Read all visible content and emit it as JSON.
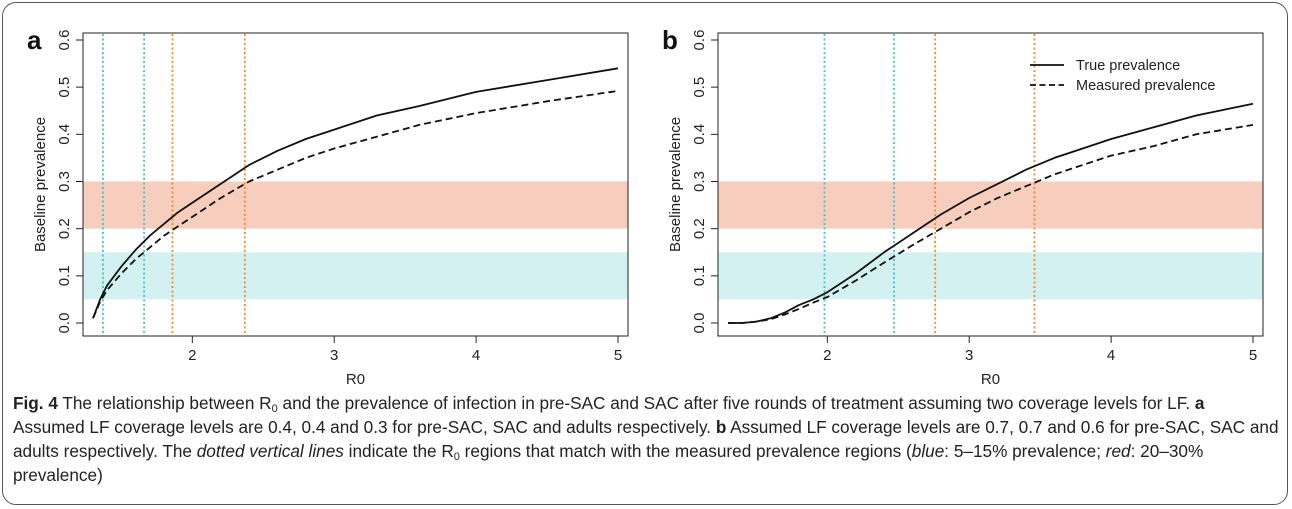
{
  "figure": {
    "caption": {
      "label": "Fig. 4",
      "line1_a": "The relationship between R",
      "line1_sub": "0",
      "line1_b": " and the prevalence of infection in pre-SAC and SAC after five rounds of treatment assuming two coverage levels for LF. ",
      "panel_a_label": "a",
      "panel_a_text": " Assumed LF coverage levels are 0.4, 0.4 and 0.3 for pre-SAC, SAC and adults respectively. ",
      "panel_b_label": "b",
      "panel_b_text": " Assumed LF coverage levels are 0.7, 0.7 and 0.6 for pre-SAC, SAC and adults respectively. The ",
      "dotted_phrase": "dotted vertical lines",
      "text_c": " indicate the R",
      "text_c_sub": "0",
      "text_d": " regions that match with the measured prevalence regions (",
      "blue_word": "blue",
      "text_e": ": 5–15% prevalence; ",
      "red_word": "red",
      "text_f": ": 20–30% prevalence)"
    }
  },
  "colors": {
    "red_band": "#f7cdbd",
    "blue_band": "#d4f1f1",
    "cyan_line": "#3ec6cf",
    "orange_line": "#f08c2a",
    "curve": "#111111"
  },
  "chart_data": [
    {
      "type": "line",
      "panel_label": "a",
      "xlabel": "R0",
      "ylabel": "Baseline prevalence",
      "xlim": [
        1.3,
        5.0
      ],
      "ylim": [
        0.0,
        0.6
      ],
      "x_ticks": [
        "2",
        "3",
        "4",
        "5"
      ],
      "y_ticks": [
        "0.0",
        "0.1",
        "0.2",
        "0.3",
        "0.4",
        "0.5",
        "0.6"
      ],
      "bands": [
        {
          "name": "blue",
          "range": [
            0.05,
            0.15
          ]
        },
        {
          "name": "red",
          "range": [
            0.2,
            0.3
          ]
        }
      ],
      "vlines": [
        {
          "color": "cyan",
          "x": 1.37
        },
        {
          "color": "cyan",
          "x": 1.66
        },
        {
          "color": "orange",
          "x": 1.86
        },
        {
          "color": "orange",
          "x": 2.37
        }
      ],
      "series": [
        {
          "style": "solid",
          "x": [
            1.3,
            1.35,
            1.4,
            1.5,
            1.6,
            1.7,
            1.8,
            1.9,
            2.0,
            2.2,
            2.4,
            2.6,
            2.8,
            3.0,
            3.3,
            3.6,
            4.0,
            4.5,
            5.0
          ],
          "y": [
            0.01,
            0.05,
            0.08,
            0.12,
            0.155,
            0.185,
            0.21,
            0.235,
            0.255,
            0.295,
            0.335,
            0.365,
            0.39,
            0.41,
            0.44,
            0.46,
            0.49,
            0.515,
            0.54
          ]
        },
        {
          "style": "dashed",
          "x": [
            1.3,
            1.35,
            1.4,
            1.5,
            1.6,
            1.7,
            1.8,
            1.9,
            2.0,
            2.2,
            2.4,
            2.6,
            2.8,
            3.0,
            3.3,
            3.6,
            4.0,
            4.5,
            5.0
          ],
          "y": [
            0.01,
            0.045,
            0.07,
            0.105,
            0.135,
            0.16,
            0.185,
            0.205,
            0.225,
            0.265,
            0.3,
            0.325,
            0.35,
            0.37,
            0.395,
            0.42,
            0.445,
            0.47,
            0.492
          ]
        }
      ]
    },
    {
      "type": "line",
      "panel_label": "b",
      "xlabel": "R0",
      "ylabel": "Baseline prevalence",
      "xlim": [
        1.3,
        5.0
      ],
      "ylim": [
        0.0,
        0.6
      ],
      "x_ticks": [
        "2",
        "3",
        "4",
        "5"
      ],
      "y_ticks": [
        "0.0",
        "0.1",
        "0.2",
        "0.3",
        "0.4",
        "0.5",
        "0.6"
      ],
      "legend": {
        "position": "top-right",
        "entries": [
          {
            "name": "True prevalence",
            "style": "solid"
          },
          {
            "name": "Measured prevalence",
            "style": "dashed"
          }
        ]
      },
      "bands": [
        {
          "name": "blue",
          "range": [
            0.05,
            0.15
          ]
        },
        {
          "name": "red",
          "range": [
            0.2,
            0.3
          ]
        }
      ],
      "vlines": [
        {
          "color": "cyan",
          "x": 1.98
        },
        {
          "color": "cyan",
          "x": 2.47
        },
        {
          "color": "orange",
          "x": 2.76
        },
        {
          "color": "orange",
          "x": 3.46
        }
      ],
      "series": [
        {
          "name": "True prevalence",
          "style": "solid",
          "x": [
            1.3,
            1.4,
            1.5,
            1.6,
            1.7,
            1.8,
            1.9,
            2.0,
            2.2,
            2.4,
            2.6,
            2.8,
            3.0,
            3.2,
            3.4,
            3.6,
            3.8,
            4.0,
            4.3,
            4.6,
            5.0
          ],
          "y": [
            0.0,
            0.0,
            0.003,
            0.01,
            0.022,
            0.038,
            0.05,
            0.065,
            0.105,
            0.15,
            0.19,
            0.23,
            0.265,
            0.295,
            0.325,
            0.35,
            0.37,
            0.39,
            0.415,
            0.44,
            0.465
          ]
        },
        {
          "name": "Measured prevalence",
          "style": "dashed",
          "x": [
            1.3,
            1.4,
            1.5,
            1.6,
            1.7,
            1.8,
            1.9,
            2.0,
            2.2,
            2.4,
            2.6,
            2.8,
            3.0,
            3.2,
            3.4,
            3.6,
            3.8,
            4.0,
            4.3,
            4.6,
            5.0
          ],
          "y": [
            0.0,
            0.0,
            0.003,
            0.008,
            0.018,
            0.03,
            0.043,
            0.055,
            0.09,
            0.128,
            0.165,
            0.2,
            0.235,
            0.265,
            0.29,
            0.315,
            0.335,
            0.355,
            0.375,
            0.4,
            0.42
          ]
        }
      ]
    }
  ]
}
